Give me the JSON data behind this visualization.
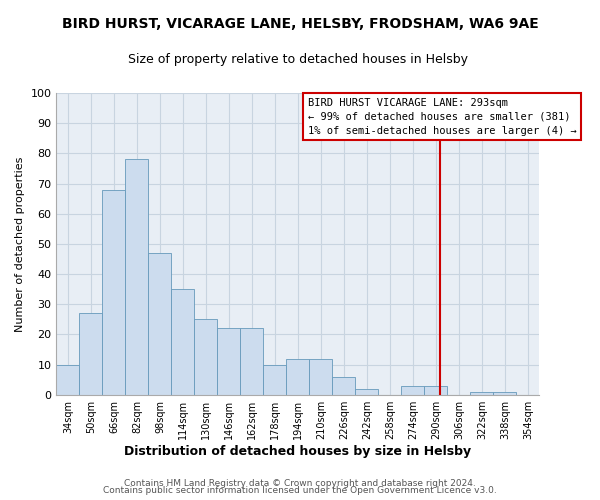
{
  "title": "BIRD HURST, VICARAGE LANE, HELSBY, FRODSHAM, WA6 9AE",
  "subtitle": "Size of property relative to detached houses in Helsby",
  "xlabel": "Distribution of detached houses by size in Helsby",
  "ylabel": "Number of detached properties",
  "bar_color": "#ccdcee",
  "bar_edgecolor": "#6699bb",
  "categories": [
    "34sqm",
    "50sqm",
    "66sqm",
    "82sqm",
    "98sqm",
    "114sqm",
    "130sqm",
    "146sqm",
    "162sqm",
    "178sqm",
    "194sqm",
    "210sqm",
    "226sqm",
    "242sqm",
    "258sqm",
    "274sqm",
    "290sqm",
    "306sqm",
    "322sqm",
    "338sqm",
    "354sqm"
  ],
  "values": [
    10,
    27,
    68,
    78,
    47,
    35,
    25,
    22,
    22,
    10,
    12,
    12,
    6,
    2,
    0,
    3,
    3,
    0,
    1,
    1,
    0
  ],
  "ylim": [
    0,
    100
  ],
  "yticks": [
    0,
    10,
    20,
    30,
    40,
    50,
    60,
    70,
    80,
    90,
    100
  ],
  "vline_color": "#cc0000",
  "vline_x_index": 16.1875,
  "annotation_title": "BIRD HURST VICARAGE LANE: 293sqm",
  "annotation_line1": "← 99% of detached houses are smaller (381)",
  "annotation_line2": "1% of semi-detached houses are larger (4) →",
  "footer1": "Contains HM Land Registry data © Crown copyright and database right 2024.",
  "footer2": "Contains public sector information licensed under the Open Government Licence v3.0.",
  "background_color": "#ffffff",
  "plot_bg_color": "#e8eef5",
  "grid_color": "#c8d4e0"
}
